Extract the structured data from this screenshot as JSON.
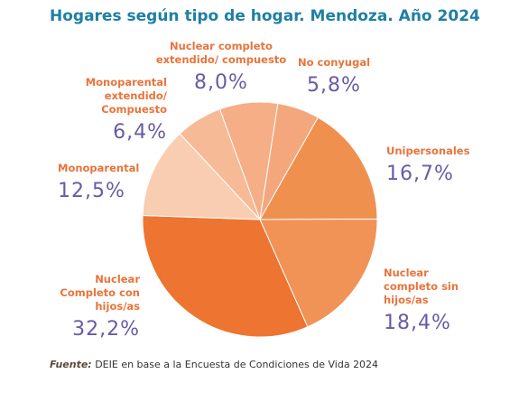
{
  "chart_data": {
    "type": "pie",
    "title": "Hogares según tipo de hogar. Mendoza. Año 2024",
    "categories": [
      "Nuclear completo extendido/ compuesto",
      "No conyugal",
      "Unipersonales",
      "Nuclear completo sin hijos/as",
      "Nuclear Completo con hijos/as",
      "Monoparental",
      "Monoparental extendido/ Compuesto"
    ],
    "values": [
      8.0,
      5.8,
      16.7,
      18.4,
      32.2,
      12.5,
      6.4
    ],
    "value_labels": [
      "8,0%",
      "5,8%",
      "16,7%",
      "18,4%",
      "32,2%",
      "12,5%",
      "6,4%"
    ],
    "colors": [
      "#f5ae86",
      "#f4a77d",
      "#f0904f",
      "#f19257",
      "#ee7431",
      "#f8cdb1",
      "#f7ba96"
    ]
  },
  "source_label": "Fuente:",
  "source_text": "DEIE en base a la Encuesta de Condiciones de Vida 2024"
}
